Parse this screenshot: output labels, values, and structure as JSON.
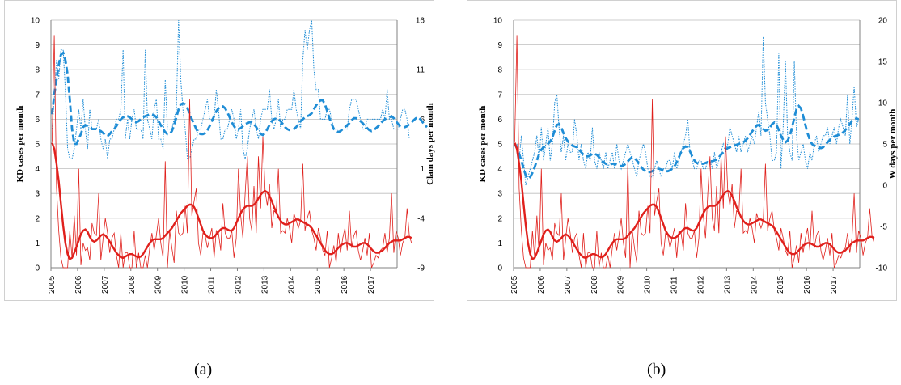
{
  "captions": {
    "a": "(a)",
    "b": "(b)"
  },
  "chart_data": [
    {
      "type": "line",
      "panel": "a",
      "ylabel": "KD cases per month",
      "ylabel_right": "Clam days per month",
      "ylim": [
        0,
        10
      ],
      "ylim_right": [
        -9,
        16
      ],
      "yticks": [
        0,
        1,
        2,
        3,
        4,
        5,
        6,
        7,
        8,
        9,
        10
      ],
      "yticks_right": [
        -9,
        -4,
        1,
        6,
        11,
        16
      ],
      "xlim": [
        2005,
        2017.92
      ],
      "xticks": [
        "2005",
        "2006",
        "2007",
        "2008",
        "2009",
        "2010",
        "2011",
        "2012",
        "2013",
        "2014",
        "2015",
        "2016",
        "2017"
      ],
      "grid": true,
      "colors": {
        "kd": "#e0201c",
        "weather": "#1f8dd6"
      },
      "kd_monthly": [
        5.1,
        9.4,
        3.2,
        1.5,
        0.4,
        0,
        0,
        0,
        1.5,
        0.4,
        2.1,
        0.5,
        4,
        0.1,
        1,
        0.7,
        0.8,
        0.3,
        1.8,
        1.4,
        1.3,
        3,
        0.3,
        1.2,
        2,
        1.4,
        0.6,
        1.2,
        1.4,
        0.5,
        0,
        1.4,
        0,
        0.6,
        0.6,
        0,
        0,
        1.5,
        0,
        0.6,
        0,
        0,
        0.5,
        0,
        0.8,
        1.4,
        0.7,
        1.3,
        2,
        1,
        0.4,
        4.3,
        0,
        1.5,
        0.8,
        0.2,
        2.3,
        1.4,
        1.3,
        1.4,
        2.5,
        1.4,
        6.8,
        2.1,
        2.7,
        3.2,
        1,
        0.5,
        1.4,
        1.3,
        0.8,
        1.2,
        1.6,
        0.4,
        1.5,
        1.4,
        0.7,
        2.6,
        1.4,
        1.2,
        1.2,
        1.5,
        0.4,
        1.2,
        4,
        2.1,
        1.2,
        3,
        4.5,
        2,
        1.5,
        3.3,
        1.4,
        4.5,
        2.4,
        5.3,
        3.1,
        2.5,
        3.4,
        1.6,
        2.3,
        2.2,
        4,
        1.4,
        1.5,
        1.4,
        2,
        1.6,
        1,
        2.2,
        1.9,
        1.6,
        1.9,
        4.2,
        1.5,
        2,
        2.3,
        1.5,
        1.2,
        0.7,
        1.6,
        1.2,
        0.7,
        0.5,
        1.5,
        0,
        0.4,
        0.9,
        0.2,
        1.4,
        0.6,
        1.2,
        1.6,
        0.7,
        2.3,
        0.8,
        1.3,
        1.5,
        0.7,
        0.3,
        0.7,
        1.2,
        0.5,
        1.4,
        0,
        0.2,
        0.5,
        0.4,
        0.7,
        0.8,
        1.4,
        0.6,
        1.2,
        3,
        0.6,
        1.5,
        1.2,
        0.5,
        1,
        1.2,
        2.4,
        1.3,
        1
      ],
      "kd_smoothed": [
        5.05,
        4.8,
        4.2,
        3.5,
        2.6,
        1.7,
        1,
        0.55,
        0.35,
        0.4,
        0.6,
        0.85,
        1.1,
        1.35,
        1.5,
        1.55,
        1.45,
        1.25,
        1.1,
        1.05,
        1.1,
        1.2,
        1.3,
        1.35,
        1.3,
        1.2,
        1.05,
        0.9,
        0.75,
        0.6,
        0.5,
        0.42,
        0.4,
        0.45,
        0.5,
        0.55,
        0.55,
        0.5,
        0.45,
        0.42,
        0.45,
        0.55,
        0.7,
        0.85,
        1,
        1.1,
        1.15,
        1.15,
        1.15,
        1.15,
        1.2,
        1.3,
        1.4,
        1.5,
        1.6,
        1.75,
        1.9,
        2.05,
        2.2,
        2.3,
        2.4,
        2.5,
        2.55,
        2.55,
        2.45,
        2.25,
        2,
        1.75,
        1.5,
        1.35,
        1.25,
        1.2,
        1.2,
        1.25,
        1.35,
        1.45,
        1.55,
        1.6,
        1.6,
        1.55,
        1.5,
        1.5,
        1.6,
        1.8,
        2,
        2.2,
        2.35,
        2.45,
        2.5,
        2.5,
        2.5,
        2.55,
        2.65,
        2.8,
        2.95,
        3.05,
        3.1,
        3.05,
        2.9,
        2.7,
        2.45,
        2.25,
        2.05,
        1.9,
        1.8,
        1.75,
        1.75,
        1.8,
        1.85,
        1.9,
        1.95,
        1.95,
        1.9,
        1.85,
        1.8,
        1.75,
        1.7,
        1.6,
        1.45,
        1.3,
        1.15,
        1,
        0.85,
        0.7,
        0.6,
        0.55,
        0.55,
        0.6,
        0.7,
        0.8,
        0.9,
        0.95,
        1,
        1,
        0.95,
        0.9,
        0.85,
        0.85,
        0.9,
        0.95,
        1,
        1,
        0.95,
        0.85,
        0.75,
        0.65,
        0.6,
        0.6,
        0.65,
        0.7,
        0.8,
        0.9,
        1,
        1.05,
        1.1,
        1.1,
        1.1,
        1.1,
        1.15,
        1.2,
        1.25,
        1.25,
        1.2
      ],
      "weather_right_monthly": [
        5,
        8,
        12,
        10,
        13,
        13,
        9,
        3,
        2,
        2,
        3,
        5,
        7,
        5,
        8,
        5,
        3,
        7,
        5,
        5,
        5,
        6,
        4,
        3,
        4,
        2,
        4,
        4,
        5,
        6,
        6,
        7,
        13,
        4,
        6,
        4,
        6,
        7,
        5,
        5,
        5,
        4,
        13,
        6,
        5,
        4,
        7,
        8,
        4,
        4,
        3,
        10,
        5,
        5,
        5,
        6,
        7,
        16,
        10,
        7,
        5,
        2,
        2,
        3,
        4,
        4,
        5,
        5,
        6,
        7,
        8,
        6,
        6,
        6,
        9,
        7,
        4,
        4,
        5,
        5,
        6,
        7,
        6,
        4,
        5,
        7,
        3,
        2,
        3,
        5,
        6,
        7,
        5,
        4,
        6,
        7,
        7,
        7,
        9,
        6,
        5,
        6,
        8,
        5,
        6,
        6,
        7,
        7,
        7,
        9,
        7,
        6,
        5,
        12,
        15,
        13,
        15,
        16,
        11,
        9,
        9,
        6,
        6,
        6,
        7,
        7,
        6,
        5,
        5,
        5,
        5,
        5,
        5,
        5,
        7,
        8,
        8,
        8,
        7,
        6,
        5,
        5,
        6,
        6,
        6,
        6,
        6,
        6,
        6,
        7,
        6,
        9,
        6,
        6,
        5,
        5,
        5,
        6,
        7,
        7,
        6,
        4
      ],
      "weather_right_smoothed": [
        6.5,
        8.5,
        10,
        11.5,
        12.5,
        12.7,
        12,
        10.5,
        8,
        5,
        3.5,
        3.5,
        4,
        4.5,
        5.2,
        5.4,
        5.3,
        5.2,
        5,
        5,
        5,
        4.9,
        4.8,
        4.6,
        4.4,
        4.3,
        4.5,
        4.8,
        5,
        5.3,
        5.7,
        6,
        6.2,
        6.3,
        6.3,
        6.2,
        6,
        5.8,
        5.7,
        5.8,
        6,
        6.2,
        6.3,
        6.4,
        6.5,
        6.5,
        6.4,
        6.2,
        5.8,
        5.4,
        5,
        4.7,
        4.5,
        4.5,
        4.8,
        5.4,
        6.2,
        7,
        7.5,
        7.6,
        7.5,
        7.1,
        6.6,
        6,
        5.5,
        5,
        4.6,
        4.5,
        4.5,
        4.6,
        4.9,
        5.3,
        5.8,
        6.3,
        6.8,
        7.1,
        7.3,
        7.3,
        7.1,
        6.7,
        6.2,
        5.7,
        5.3,
        5,
        5,
        5.1,
        5.3,
        5.5,
        5.6,
        5.7,
        5.7,
        5.5,
        5.2,
        4.8,
        4.5,
        4.4,
        4.6,
        5,
        5.4,
        5.8,
        6,
        6.1,
        6,
        5.8,
        5.5,
        5.2,
        5,
        4.9,
        4.9,
        5,
        5.2,
        5.5,
        5.8,
        6,
        6.2,
        6.3,
        6.4,
        6.6,
        7,
        7.4,
        7.7,
        7.9,
        7.9,
        7.5,
        6.8,
        6.1,
        5.5,
        5,
        4.8,
        4.7,
        4.8,
        5,
        5.2,
        5.4,
        5.6,
        5.9,
        6.1,
        6.1,
        6,
        5.8,
        5.6,
        5.3,
        5.1,
        4.9,
        4.8,
        4.9,
        5.1,
        5.3,
        5.6,
        5.8,
        6,
        6.1,
        6.2,
        6.3,
        6.1,
        5.8,
        5.5,
        5.3,
        5.2,
        5.2,
        5.3,
        5.5,
        5.7,
        5.9,
        6.1,
        6.2,
        6,
        5.7,
        5.4,
        5.2
      ]
    },
    {
      "type": "line",
      "panel": "b",
      "ylabel": "KD cases per month",
      "ylabel_right": "W days per month",
      "ylim": [
        0,
        10
      ],
      "ylim_right": [
        -10,
        20
      ],
      "yticks": [
        0,
        1,
        2,
        3,
        4,
        5,
        6,
        7,
        8,
        9,
        10
      ],
      "yticks_right": [
        -10,
        -5,
        0,
        5,
        10,
        15,
        20
      ],
      "xlim": [
        2005,
        2017.92
      ],
      "xticks": [
        "2005",
        "2006",
        "2007",
        "2008",
        "2009",
        "2010",
        "2011",
        "2012",
        "2013",
        "2014",
        "2015",
        "2016",
        "2017"
      ],
      "grid": true,
      "colors": {
        "kd": "#e0201c",
        "weather": "#1f8dd6"
      },
      "kd_monthly": [
        5.1,
        9.4,
        3.2,
        1.5,
        0.4,
        0,
        0,
        0,
        1.5,
        0.4,
        2.1,
        0.5,
        4,
        0.1,
        1,
        0.7,
        0.8,
        0.3,
        1.8,
        1.4,
        1.3,
        3,
        0.3,
        1.2,
        2,
        1.4,
        0.6,
        1.2,
        1.4,
        0.5,
        0,
        1.4,
        0,
        0.6,
        0.6,
        0,
        0,
        1.5,
        0,
        0.6,
        0,
        0,
        0.5,
        0,
        0.8,
        1.4,
        0.7,
        1.3,
        2,
        1,
        0.4,
        4.3,
        0,
        1.5,
        0.8,
        0.2,
        2.3,
        1.4,
        1.3,
        1.4,
        2.5,
        1.4,
        6.8,
        2.1,
        2.7,
        3.2,
        1,
        0.5,
        1.4,
        1.3,
        0.8,
        1.2,
        1.6,
        0.4,
        1.5,
        1.4,
        0.7,
        2.6,
        1.4,
        1.2,
        1.2,
        1.5,
        0.4,
        1.2,
        4,
        2.1,
        1.2,
        3,
        4.5,
        2,
        1.5,
        3.3,
        1.4,
        4.5,
        2.4,
        5.3,
        3.1,
        2.5,
        3.4,
        1.6,
        2.3,
        2.2,
        4,
        1.4,
        1.5,
        1.4,
        2,
        1.6,
        1,
        2.2,
        1.9,
        1.6,
        1.9,
        4.2,
        1.5,
        2,
        2.3,
        1.5,
        1.2,
        0.7,
        1.6,
        1.2,
        0.7,
        0.5,
        1.5,
        0,
        0.4,
        0.9,
        0.2,
        1.4,
        0.6,
        1.2,
        1.6,
        0.7,
        2.3,
        0.8,
        1.3,
        1.5,
        0.7,
        0.3,
        0.7,
        1.2,
        0.5,
        1.4,
        0,
        0.2,
        0.5,
        0.4,
        0.7,
        0.8,
        1.4,
        0.6,
        1.2,
        3,
        0.6,
        1.5,
        1.2,
        0.5,
        1,
        1.2,
        2.4,
        1.3,
        1
      ],
      "kd_smoothed": [
        5.05,
        4.8,
        4.2,
        3.5,
        2.6,
        1.7,
        1,
        0.55,
        0.35,
        0.4,
        0.6,
        0.85,
        1.1,
        1.35,
        1.5,
        1.55,
        1.45,
        1.25,
        1.1,
        1.05,
        1.1,
        1.2,
        1.3,
        1.35,
        1.3,
        1.2,
        1.05,
        0.9,
        0.75,
        0.6,
        0.5,
        0.42,
        0.4,
        0.45,
        0.5,
        0.55,
        0.55,
        0.5,
        0.45,
        0.42,
        0.45,
        0.55,
        0.7,
        0.85,
        1,
        1.1,
        1.15,
        1.15,
        1.15,
        1.15,
        1.2,
        1.3,
        1.4,
        1.5,
        1.6,
        1.75,
        1.9,
        2.05,
        2.2,
        2.3,
        2.4,
        2.5,
        2.55,
        2.55,
        2.45,
        2.25,
        2,
        1.75,
        1.5,
        1.35,
        1.25,
        1.2,
        1.2,
        1.25,
        1.35,
        1.45,
        1.55,
        1.6,
        1.6,
        1.55,
        1.5,
        1.5,
        1.6,
        1.8,
        2,
        2.2,
        2.35,
        2.45,
        2.5,
        2.5,
        2.5,
        2.55,
        2.65,
        2.8,
        2.95,
        3.05,
        3.1,
        3.05,
        2.9,
        2.7,
        2.45,
        2.25,
        2.05,
        1.9,
        1.8,
        1.75,
        1.75,
        1.8,
        1.85,
        1.9,
        1.95,
        1.95,
        1.9,
        1.85,
        1.8,
        1.75,
        1.7,
        1.6,
        1.45,
        1.3,
        1.15,
        1,
        0.85,
        0.7,
        0.6,
        0.55,
        0.55,
        0.6,
        0.7,
        0.8,
        0.9,
        0.95,
        1,
        1,
        0.95,
        0.9,
        0.85,
        0.85,
        0.9,
        0.95,
        1,
        1,
        0.95,
        0.85,
        0.75,
        0.65,
        0.6,
        0.6,
        0.65,
        0.7,
        0.8,
        0.9,
        1,
        1.05,
        1.1,
        1.1,
        1.1,
        1.1,
        1.15,
        1.2,
        1.25,
        1.25,
        1.2
      ],
      "weather_right_monthly": [
        5,
        5,
        3,
        6,
        3,
        0,
        1,
        2,
        3,
        4,
        6,
        3,
        7,
        3,
        5,
        7,
        3,
        5,
        10,
        11,
        7,
        4,
        6,
        3,
        5,
        4,
        4,
        8,
        6,
        3,
        5,
        3,
        2,
        4,
        3,
        7,
        3,
        2,
        4,
        3,
        2,
        4,
        2,
        3,
        4,
        2,
        5,
        3,
        2,
        3,
        4,
        5,
        4,
        3,
        2,
        1,
        3,
        4,
        5,
        4,
        2,
        1,
        1,
        2,
        3,
        2,
        1,
        2,
        2,
        3,
        3,
        2,
        4,
        2,
        3,
        4,
        5,
        6,
        8,
        4,
        3,
        2,
        2,
        3,
        3,
        2,
        2,
        3,
        3,
        2,
        4,
        2,
        3,
        4,
        5,
        4,
        5,
        7,
        6,
        5,
        4,
        6,
        4,
        5,
        6,
        4,
        5,
        6,
        5,
        7,
        9,
        6,
        18,
        10,
        8,
        6,
        3,
        3,
        4,
        16,
        2,
        7,
        15,
        6,
        4,
        3,
        15,
        6,
        3,
        4,
        5,
        3,
        2,
        4,
        3,
        5,
        6,
        4,
        5,
        6,
        6,
        7,
        5,
        6,
        7,
        5,
        7,
        8,
        7,
        6,
        11,
        5,
        8,
        12,
        7,
        8
      ],
      "weather_right_smoothed": [
        5,
        4.5,
        3.8,
        3,
        2,
        1.2,
        0.8,
        1,
        1.5,
        2.2,
        3,
        3.8,
        4.3,
        4.6,
        4.8,
        5,
        5.3,
        5.8,
        6.6,
        7.3,
        7.4,
        7,
        6.3,
        5.7,
        5.3,
        5,
        4.8,
        4.7,
        4.6,
        4.3,
        4,
        3.7,
        3.5,
        3.5,
        3.6,
        3.8,
        3.8,
        3.7,
        3.4,
        3.1,
        2.8,
        2.6,
        2.5,
        2.5,
        2.6,
        2.6,
        2.5,
        2.4,
        2.3,
        2.4,
        2.6,
        2.9,
        3.2,
        3.4,
        3.3,
        3,
        2.6,
        2.2,
        1.9,
        1.7,
        1.6,
        1.6,
        1.7,
        1.9,
        2,
        2,
        1.9,
        1.8,
        1.7,
        1.7,
        1.8,
        2,
        2.3,
        2.8,
        3.4,
        4,
        4.5,
        4.7,
        4.6,
        4.1,
        3.5,
        3,
        2.7,
        2.6,
        2.6,
        2.6,
        2.7,
        2.8,
        2.9,
        2.9,
        3,
        3.1,
        3.4,
        3.7,
        4,
        4.3,
        4.5,
        4.6,
        4.7,
        4.8,
        4.9,
        5,
        5.1,
        5.2,
        5.4,
        5.7,
        6.1,
        6.5,
        6.9,
        7.2,
        7.3,
        7.1,
        6.8,
        6.6,
        6.7,
        7,
        7.4,
        7.6,
        7.3,
        6.7,
        6,
        5.5,
        5.2,
        5.4,
        6,
        7,
        8.2,
        9.2,
        9.6,
        9.3,
        8.4,
        7.3,
        6.3,
        5.5,
        5,
        4.8,
        4.7,
        4.6,
        4.5,
        4.6,
        4.9,
        5.2,
        5.5,
        5.7,
        5.9,
        6,
        6.1,
        6.2,
        6.4,
        6.7,
        7,
        7.4,
        7.8,
        8,
        8.1,
        8
      ]
    }
  ]
}
